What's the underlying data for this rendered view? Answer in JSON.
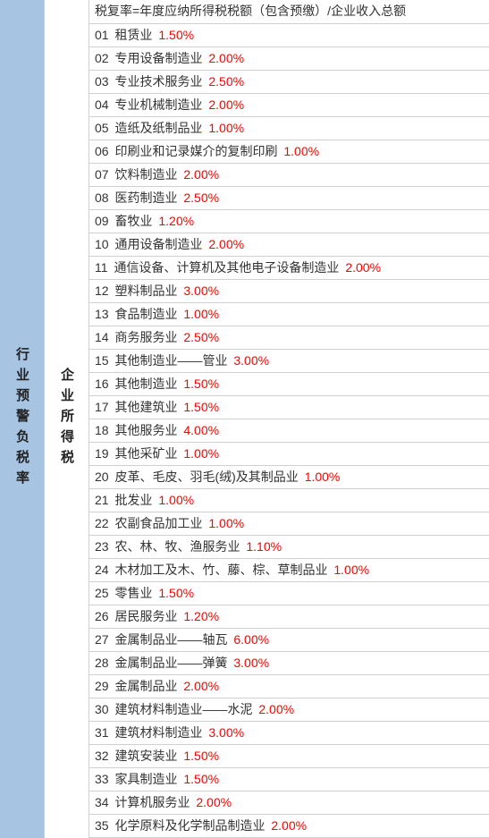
{
  "leftLabel": "行业预警负税率",
  "midLabel": "企业所得税",
  "formula": "税复率=年度应纳所得税税额（包含预缴）/企业收入总额",
  "rows": [
    {
      "num": "01",
      "name": "租赁业",
      "rate": "1.50%"
    },
    {
      "num": "02",
      "name": "专用设备制造业",
      "rate": "2.00%"
    },
    {
      "num": "03",
      "name": "专业技术服务业",
      "rate": "2.50%"
    },
    {
      "num": "04",
      "name": "专业机械制造业",
      "rate": "2.00%"
    },
    {
      "num": "05",
      "name": "造纸及纸制品业",
      "rate": "1.00%"
    },
    {
      "num": "06",
      "name": "印刷业和记录媒介的复制印刷",
      "rate": "1.00%"
    },
    {
      "num": "07",
      "name": "饮料制造业",
      "rate": "2.00%"
    },
    {
      "num": "08",
      "name": "医药制造业",
      "rate": "2.50%"
    },
    {
      "num": "09",
      "name": "畜牧业",
      "rate": "1.20%"
    },
    {
      "num": "10",
      "name": "通用设备制造业",
      "rate": "2.00%"
    },
    {
      "num": "11",
      "name": "通信设备、计算机及其他电子设备制造业",
      "rate": "2.00%"
    },
    {
      "num": "12",
      "name": "塑料制品业",
      "rate": "3.00%"
    },
    {
      "num": "13",
      "name": "食品制造业",
      "rate": "1.00%"
    },
    {
      "num": "14",
      "name": "商务服务业",
      "rate": "2.50%"
    },
    {
      "num": "15",
      "name": "其他制造业——管业",
      "rate": "3.00%"
    },
    {
      "num": "16",
      "name": "其他制造业",
      "rate": "1.50%"
    },
    {
      "num": "17",
      "name": "其他建筑业",
      "rate": "1.50%"
    },
    {
      "num": "18",
      "name": "其他服务业",
      "rate": "4.00%"
    },
    {
      "num": "19",
      "name": "其他采矿业",
      "rate": "1.00%"
    },
    {
      "num": "20",
      "name": "皮革、毛皮、羽毛(绒)及其制品业",
      "rate": "1.00%"
    },
    {
      "num": "21",
      "name": "批发业",
      "rate": "1.00%"
    },
    {
      "num": "22",
      "name": "农副食品加工业",
      "rate": "1.00%"
    },
    {
      "num": "23",
      "name": "农、林、牧、渔服务业",
      "rate": "1.10%"
    },
    {
      "num": "24",
      "name": "木材加工及木、竹、藤、棕、草制品业",
      "rate": "1.00%"
    },
    {
      "num": "25",
      "name": "零售业",
      "rate": "1.50%"
    },
    {
      "num": "26",
      "name": "居民服务业",
      "rate": "1.20%"
    },
    {
      "num": "27",
      "name": "金属制品业——轴瓦",
      "rate": "6.00%"
    },
    {
      "num": "28",
      "name": "金属制品业——弹簧",
      "rate": "3.00%"
    },
    {
      "num": "29",
      "name": "金属制品业",
      "rate": "2.00%"
    },
    {
      "num": "30",
      "name": "建筑材料制造业——水泥",
      "rate": "2.00%"
    },
    {
      "num": "31",
      "name": "建筑材料制造业",
      "rate": "3.00%"
    },
    {
      "num": "32",
      "name": "建筑安装业",
      "rate": "1.50%"
    },
    {
      "num": "33",
      "name": "家具制造业",
      "rate": "1.50%"
    },
    {
      "num": "34",
      "name": "计算机服务业",
      "rate": "2.00%"
    },
    {
      "num": "35",
      "name": "化学原料及化学制品制造业",
      "rate": "2.00%"
    }
  ],
  "style": {
    "leftBg": "#a7c4e2",
    "rateColor": "#ff0000",
    "borderColor": "#d0d0d0",
    "fontSize": 14
  }
}
